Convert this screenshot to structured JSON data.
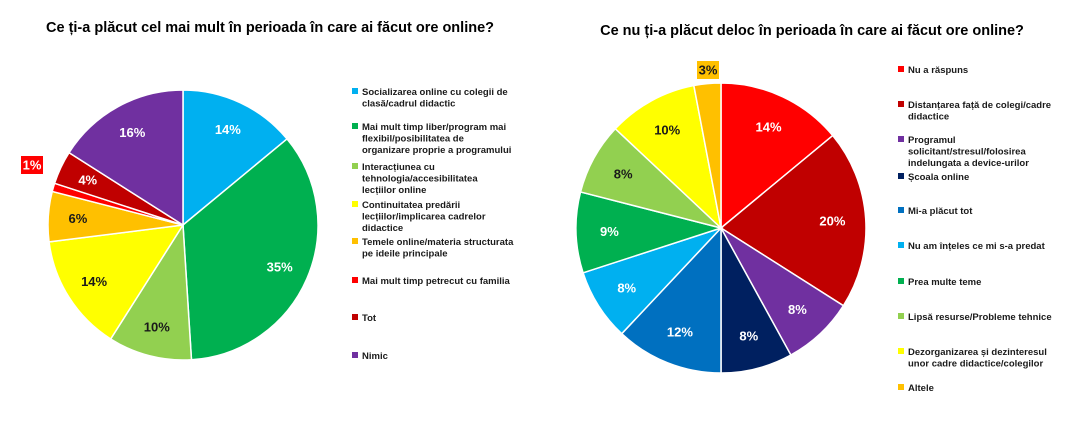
{
  "chart_data": [
    {
      "type": "pie",
      "title": "Ce ți-a plăcut cel mai mult în perioada în care ai făcut ore online?",
      "slices": [
        {
          "label": "Socializarea online cu colegii de clasă/cadrul didactic",
          "value": 14,
          "color": "#00b0f0",
          "value_label": "14%"
        },
        {
          "label": "Mai mult timp liber/program mai flexibil/posibilitatea de organizare proprie a programului",
          "value": 35,
          "color": "#00b050",
          "value_label": "35%"
        },
        {
          "label": "Interacțiunea cu tehnologia/accesibilitatea lecțiilor online",
          "value": 10,
          "color": "#92d050",
          "value_label": "10%"
        },
        {
          "label": "Continuitatea predării lecțiilor/implicarea cadrelor didactice",
          "value": 14,
          "color": "#ffff00",
          "value_label": "14%"
        },
        {
          "label": "Temele online/materia structurata pe ideile principale",
          "value": 6,
          "color": "#ffc000",
          "value_label": "6%"
        },
        {
          "label": "Mai mult timp petrecut cu familia",
          "value": 1,
          "color": "#ff0000",
          "value_label": "1%"
        },
        {
          "label": "Tot",
          "value": 4,
          "color": "#c00000",
          "value_label": "4%"
        },
        {
          "label": "Nimic",
          "value": 16,
          "color": "#7030a0",
          "value_label": "16%"
        }
      ],
      "legend_position": "right"
    },
    {
      "type": "pie",
      "title": "Ce nu ți-a plăcut deloc în perioada în care ai făcut ore online?",
      "slices": [
        {
          "label": "Nu a răspuns",
          "value": 14,
          "color": "#ff0000",
          "value_label": "14%"
        },
        {
          "label": "Distanțarea față de colegi/cadre didactice",
          "value": 20,
          "color": "#c00000",
          "value_label": "20%"
        },
        {
          "label": "Programul solicitant/stresul/folosirea indelungata a device-urilor",
          "value": 8,
          "color": "#7030a0",
          "value_label": "8%"
        },
        {
          "label": "Școala online",
          "value": 8,
          "color": "#002060",
          "value_label": "8%"
        },
        {
          "label": "Mi-a plăcut tot",
          "value": 12,
          "color": "#0070c0",
          "value_label": "12%"
        },
        {
          "label": "Nu am înțeles ce mi s-a predat",
          "value": 8,
          "color": "#00b0f0",
          "value_label": "8%"
        },
        {
          "label": "Prea multe teme",
          "value": 9,
          "color": "#00b050",
          "value_label": "9%"
        },
        {
          "label": "Lipsă resurse/Probleme tehnice",
          "value": 8,
          "color": "#92d050",
          "value_label": "8%"
        },
        {
          "label": "Dezorganizarea și dezinteresul unor cadre didactice/colegilor",
          "value": 10,
          "color": "#ffff00",
          "value_label": "10%"
        },
        {
          "label": "Altele",
          "value": 3,
          "color": "#ffc000",
          "value_label": "3%"
        }
      ],
      "legend_position": "right"
    }
  ]
}
